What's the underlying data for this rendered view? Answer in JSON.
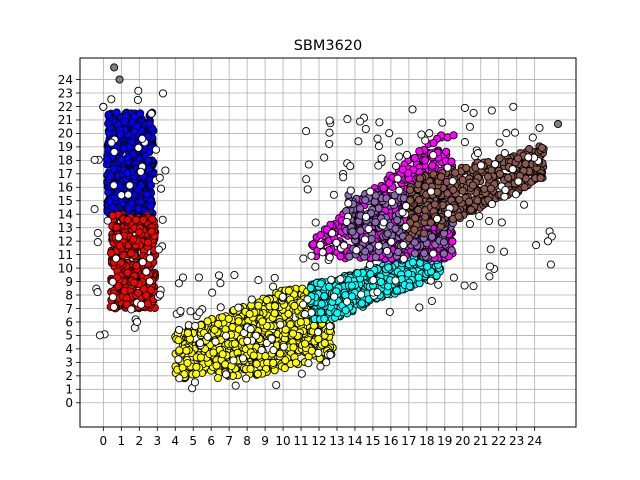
{
  "chart_data": {
    "type": "scatter",
    "title": "SBM3620",
    "xlabel": "",
    "ylabel": "",
    "xlim": [
      -1.3,
      26.3
    ],
    "ylim": [
      -1.8,
      25.6
    ],
    "xticks": [
      0,
      1,
      2,
      3,
      4,
      5,
      6,
      7,
      8,
      9,
      10,
      11,
      12,
      13,
      14,
      15,
      16,
      17,
      18,
      19,
      20,
      21,
      22,
      23,
      24
    ],
    "yticks": [
      0,
      1,
      2,
      3,
      4,
      5,
      6,
      7,
      8,
      9,
      10,
      11,
      12,
      13,
      14,
      15,
      16,
      17,
      18,
      19,
      20,
      21,
      22,
      23,
      24
    ],
    "grid": true,
    "series": [
      {
        "color": "#0000ff",
        "region": {
          "x": [
            0.2,
            2.8
          ],
          "y": [
            13.8,
            22.0
          ]
        },
        "count": 520
      },
      {
        "color": "#ff0000",
        "region": {
          "x": [
            0.4,
            2.9
          ],
          "y": [
            7.0,
            14.0
          ]
        },
        "count": 380
      },
      {
        "color": "#ffff00",
        "region": {
          "x": [
            4.0,
            12.8
          ],
          "y": [
            1.8,
            8.5
          ]
        },
        "count": 640
      },
      {
        "color": "#00ffff",
        "region": {
          "x": [
            11.5,
            18.8
          ],
          "y": [
            6.2,
            11.5
          ]
        },
        "count": 520
      },
      {
        "color": "#ff00ff",
        "region": {
          "x": [
            11.5,
            19.5
          ],
          "y": [
            10.6,
            20.0
          ]
        },
        "count": 560
      },
      {
        "color": "#8c6ab2",
        "region": {
          "x": [
            13.5,
            19.5
          ],
          "y": [
            10.8,
            15.5
          ]
        },
        "count": 220
      },
      {
        "color": "#8b5a4e",
        "region": {
          "x": [
            17.0,
            24.5
          ],
          "y": [
            12.0,
            20.0
          ]
        },
        "count": 380
      },
      {
        "color": "#ffffff",
        "region": {
          "x": [
            -0.5,
            25.0
          ],
          "y": [
            0.0,
            23.5
          ]
        },
        "count": 260
      }
    ],
    "outliers": [
      {
        "x": 0.6,
        "y": 24.9,
        "color": "#808080"
      },
      {
        "x": 25.3,
        "y": 20.7,
        "color": "#808080"
      },
      {
        "x": 0.9,
        "y": 24.0,
        "color": "#808080"
      }
    ]
  }
}
